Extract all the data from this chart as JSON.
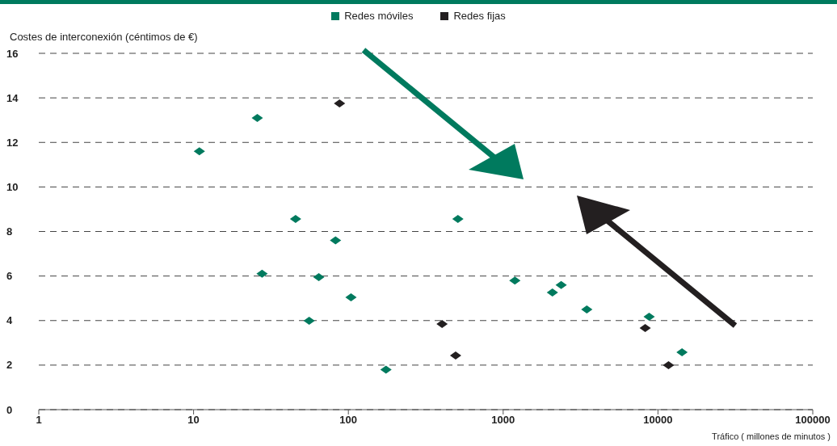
{
  "chart_data": {
    "type": "scatter",
    "xlabel": "Tráfico ( millones de minutos )",
    "ylabel": "Costes de  interconexión (céntimos de €)",
    "log": "x",
    "xlim": [
      1,
      100000
    ],
    "xticks": [
      1,
      10,
      100,
      1000,
      10000,
      100000
    ],
    "ylim": [
      0,
      16
    ],
    "yticks": [
      0,
      2,
      4,
      6,
      8,
      10,
      12,
      14,
      16
    ],
    "grid": "y",
    "legend": "top",
    "marker": "diamond",
    "series": [
      {
        "name": "Redes móviles",
        "color": "#007a5e",
        "x": [
          10.9,
          25.8,
          45.6,
          82.6,
          27.7,
          64.4,
          104,
          55.8,
          175,
          510,
          1190,
          2080,
          2370,
          3470,
          8770,
          14300
        ],
        "values": [
          11.6,
          13.1,
          8.56,
          7.6,
          6.1,
          5.95,
          5.04,
          3.99,
          1.8,
          8.56,
          5.8,
          5.26,
          5.6,
          4.5,
          4.17,
          2.58
        ]
      },
      {
        "name": "Redes fijas",
        "color": "#231f20",
        "x": [
          87.7,
          403,
          493,
          8270,
          11700
        ],
        "values": [
          13.75,
          3.85,
          2.43,
          3.66,
          2.0
        ]
      }
    ]
  }
}
